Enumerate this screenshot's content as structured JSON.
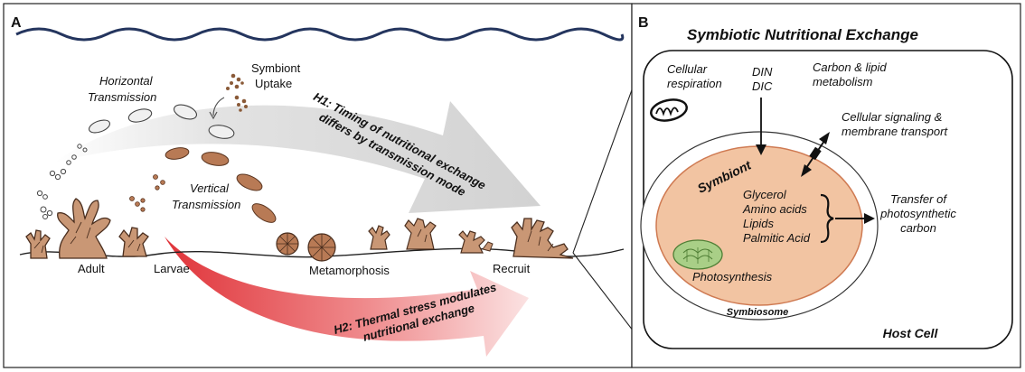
{
  "panel_a": {
    "letter": "A",
    "horizontal_transmission": [
      "Horizontal",
      "Transmission"
    ],
    "symbiont_uptake": [
      "Symbiont",
      "Uptake"
    ],
    "vertical_transmission": [
      "Vertical",
      "Transmission"
    ],
    "h1": [
      "H1: Timing of nutritional exchange",
      "differs by transmission mode"
    ],
    "h2": [
      "H2: Thermal stress modulates",
      "nutritional exchange"
    ],
    "stages": {
      "adult": "Adult",
      "larvae": "Larvae",
      "metamorphosis": "Metamorphosis",
      "recruit": "Recruit"
    }
  },
  "panel_b": {
    "letter": "B",
    "title": "Symbiotic Nutritional Exchange",
    "cellular_respiration": [
      "Cellular",
      "respiration"
    ],
    "din_dic": [
      "DIN",
      "DIC"
    ],
    "carbon_lipid": [
      "Carbon & lipid",
      "metabolism"
    ],
    "signaling": [
      "Cellular signaling &",
      "membrane transport"
    ],
    "symbiont": "Symbiont",
    "compounds": [
      "Glycerol",
      "Amino acids",
      "Lipids",
      "Palmitic Acid"
    ],
    "transfer": [
      "Transfer of",
      "photosynthetic",
      "carbon"
    ],
    "photosynthesis": "Photosynthesis",
    "symbiosome": "Symbiosome",
    "host_cell": "Host Cell"
  },
  "colors": {
    "coral_fill": "#c99775",
    "coral_stroke": "#4a2e1e",
    "larva_fill": "#b87a55",
    "symbiont_fill": "#f2c4a2",
    "symbiont_stroke": "#cf7a52",
    "chloroplast_fill": "#a9cf87",
    "chloroplast_stroke": "#4f7e35",
    "h1_arrow": "#dadada",
    "h2_arrow": "#e0343a",
    "wave": "#24355e"
  }
}
